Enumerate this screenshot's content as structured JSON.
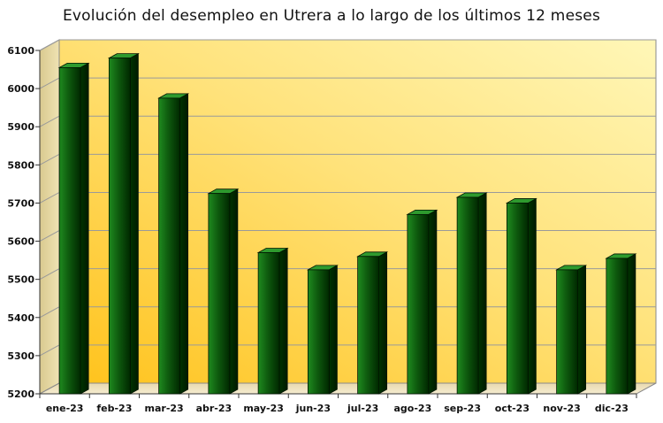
{
  "chart_data": {
    "type": "bar",
    "title": "Evolución del desempleo en Utrera a lo largo de los últimos 12 meses",
    "xlabel": "",
    "ylabel": "",
    "categories": [
      "ene-23",
      "feb-23",
      "mar-23",
      "abr-23",
      "may-23",
      "jun-23",
      "jul-23",
      "ago-23",
      "sep-23",
      "oct-23",
      "nov-23",
      "dic-23"
    ],
    "values": [
      6055,
      6080,
      5975,
      5725,
      5570,
      5525,
      5560,
      5670,
      5715,
      5700,
      5525,
      5555
    ],
    "ylim": [
      5200,
      6100
    ],
    "yticks": [
      5200,
      5300,
      5400,
      5500,
      5600,
      5700,
      5800,
      5900,
      6000,
      6100
    ],
    "grid": true,
    "legend": "none",
    "colors": {
      "bar_light": "#1f8a1f",
      "bar_dark": "#002800",
      "background_light": "#fff7b8",
      "background_dark": "#ffc21a",
      "grid": "#9a9a9a"
    }
  }
}
